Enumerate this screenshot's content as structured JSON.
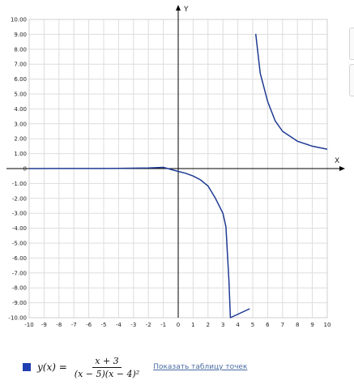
{
  "chart_data": {
    "type": "line",
    "title": "",
    "xlabel": "X",
    "ylabel": "Y",
    "xlim": [
      -10,
      10
    ],
    "ylim": [
      -10,
      10
    ],
    "grid": true,
    "x_ticks": [
      "-10",
      "-9",
      "-8",
      "-7",
      "-6",
      "-5",
      "-4",
      "-3",
      "-2",
      "-1",
      "0",
      "1",
      "2",
      "3",
      "4",
      "5",
      "6",
      "7",
      "8",
      "9",
      "10"
    ],
    "y_ticks": [
      "10.00",
      "9.00",
      "8.00",
      "7.00",
      "6.00",
      "5.00",
      "4.00",
      "3.00",
      "2.00",
      "1.00",
      "0",
      "-1.00",
      "-2.00",
      "-3.00",
      "-4.00",
      "-5.00",
      "-6.00",
      "-7.00",
      "-8.00",
      "-9.00",
      "-10.00"
    ],
    "series": [
      {
        "color": "#1f3a93",
        "x": [
          -10,
          -8,
          -6,
          -4,
          -2,
          -1,
          0,
          0.5,
          1,
          1.5,
          2,
          2.5,
          3,
          3.2,
          3.4,
          3.5,
          4.8,
          5.2,
          5.5,
          6,
          6.5,
          7,
          8,
          9,
          10
        ],
        "y": [
          0.0016,
          0.0028,
          0.0052,
          0.0111,
          0.0357,
          0.0833,
          -0.1875,
          -0.3158,
          -0.5,
          -0.7619,
          -1.1667,
          -2.0,
          -3.0,
          -3.9,
          -7.5,
          -10.0,
          -9.4,
          9.03,
          6.4,
          4.5,
          3.21,
          2.5,
          1.83,
          1.5,
          1.3
        ]
      }
    ]
  },
  "legend": {
    "marker_color": "#1f3fb0",
    "function_label": "y(x) =",
    "numerator": "x + 3",
    "denominator": "(x − 5)(x − 4)²",
    "table_link": "Показать таблицу точек"
  }
}
